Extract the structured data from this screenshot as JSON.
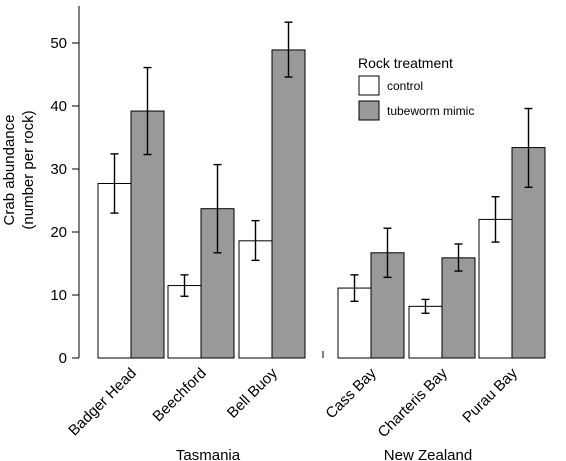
{
  "chart_data": {
    "type": "bar",
    "ylabel_line1": "Crab abundance",
    "ylabel_line2": "(number per rock)",
    "ylim": [
      0,
      57
    ],
    "yticks": [
      0,
      10,
      20,
      30,
      40,
      50
    ],
    "legend": {
      "title": "Rock treatment",
      "placement": "top-right"
    },
    "series": [
      {
        "name": "control",
        "color": "#ffffff"
      },
      {
        "name": "tubeworm mimic",
        "color": "#999999"
      }
    ],
    "groups": [
      {
        "name": "Tasmania",
        "sites": [
          {
            "name": "Badger Head",
            "values": [
              27.7,
              39.2
            ],
            "errors": [
              [
                23.0,
                32.4
              ],
              [
                32.3,
                46.1
              ]
            ]
          },
          {
            "name": "Beechford",
            "values": [
              11.5,
              23.7
            ],
            "errors": [
              [
                9.8,
                13.2
              ],
              [
                16.7,
                30.7
              ]
            ]
          },
          {
            "name": "Bell Buoy",
            "values": [
              18.6,
              48.9
            ],
            "errors": [
              [
                15.5,
                21.8
              ],
              [
                44.6,
                53.3
              ]
            ]
          }
        ]
      },
      {
        "name": "New Zealand",
        "sites": [
          {
            "name": "Cass Bay",
            "values": [
              11.1,
              16.7
            ],
            "errors": [
              [
                9.0,
                13.2
              ],
              [
                12.8,
                20.6
              ]
            ]
          },
          {
            "name": "Charteris Bay",
            "values": [
              8.2,
              15.9
            ],
            "errors": [
              [
                7.1,
                9.3
              ],
              [
                13.8,
                18.1
              ]
            ]
          },
          {
            "name": "Purau Bay",
            "values": [
              22.0,
              33.4
            ],
            "errors": [
              [
                18.4,
                25.6
              ],
              [
                27.1,
                39.6
              ]
            ]
          }
        ]
      }
    ]
  }
}
